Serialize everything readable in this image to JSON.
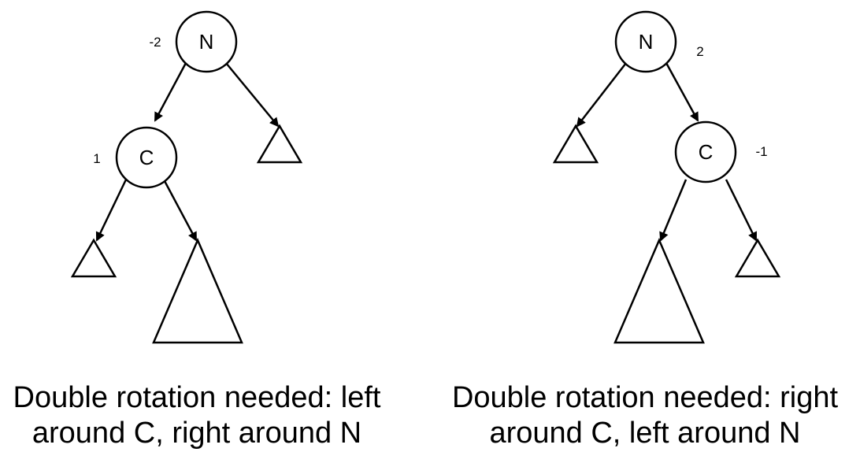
{
  "left_tree": {
    "root": {
      "label": "N",
      "balance": "-2"
    },
    "child": {
      "label": "C",
      "balance": "1"
    },
    "caption_line1": "Double rotation needed: left",
    "caption_line2": "around C, right around N"
  },
  "right_tree": {
    "root": {
      "label": "N",
      "balance": "2"
    },
    "child": {
      "label": "C",
      "balance": "-1"
    },
    "caption_line1": "Double rotation needed: right",
    "caption_line2": "around C, left around N"
  },
  "colors": {
    "stroke": "#000000",
    "background": "#ffffff"
  }
}
